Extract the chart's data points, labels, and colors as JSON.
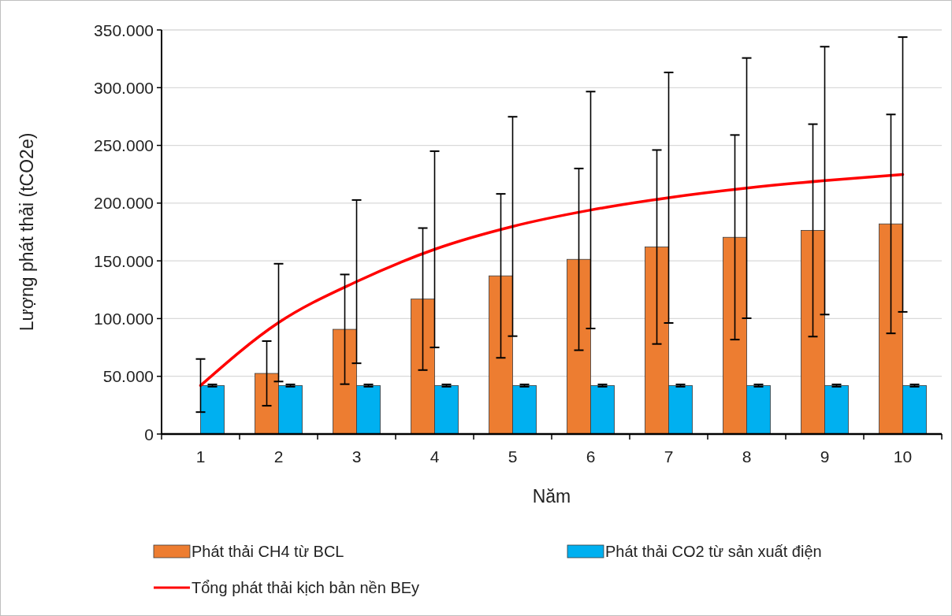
{
  "chart_data": {
    "type": "bar",
    "xlabel": "Năm",
    "ylabel": "Lượng phát thải (tCO2e)",
    "categories": [
      "1",
      "2",
      "3",
      "4",
      "5",
      "6",
      "7",
      "8",
      "9",
      "10"
    ],
    "series": [
      {
        "name": "Phát thải CH4 từ BCL",
        "color": "#ed7d31",
        "values": [
          0,
          52500,
          90700,
          116900,
          137000,
          151300,
          162000,
          170400,
          176400,
          182000
        ],
        "errors": [
          null,
          28000,
          47500,
          61500,
          71000,
          78700,
          84000,
          88600,
          92000,
          94800
        ]
      },
      {
        "name": "Phát thải CO2 từ sản xuất điện",
        "color": "#00b0f0",
        "values": [
          42000,
          42000,
          42000,
          42000,
          42000,
          42000,
          42000,
          42000,
          42000,
          42000
        ],
        "errors": [
          1000,
          1000,
          1000,
          1000,
          1000,
          1000,
          1000,
          1000,
          1000,
          1000
        ]
      },
      {
        "name": "Tổng phát thải kịch bản nền BEy",
        "type": "line",
        "color": "#ff0000",
        "values": [
          42000,
          96500,
          132000,
          160000,
          179800,
          194000,
          204700,
          213000,
          219500,
          224800
        ],
        "errors": [
          23000,
          51000,
          70700,
          85000,
          95000,
          102600,
          108500,
          112700,
          116000,
          119000
        ]
      }
    ],
    "ylim": [
      0,
      350000
    ],
    "yticks": [
      0,
      {
        "value": 50000,
        "label": "50.000"
      },
      {
        "value": 100000,
        "label": "100.000"
      },
      {
        "value": 150000,
        "label": "150.000"
      },
      {
        "value": 200000,
        "label": "200.000"
      },
      {
        "value": 250000,
        "label": "250.000"
      },
      {
        "value": 300000,
        "label": "300.000"
      },
      {
        "value": 350000,
        "label": "350.000"
      }
    ],
    "grid": "y",
    "legend": "bottom",
    "marker": "none"
  }
}
